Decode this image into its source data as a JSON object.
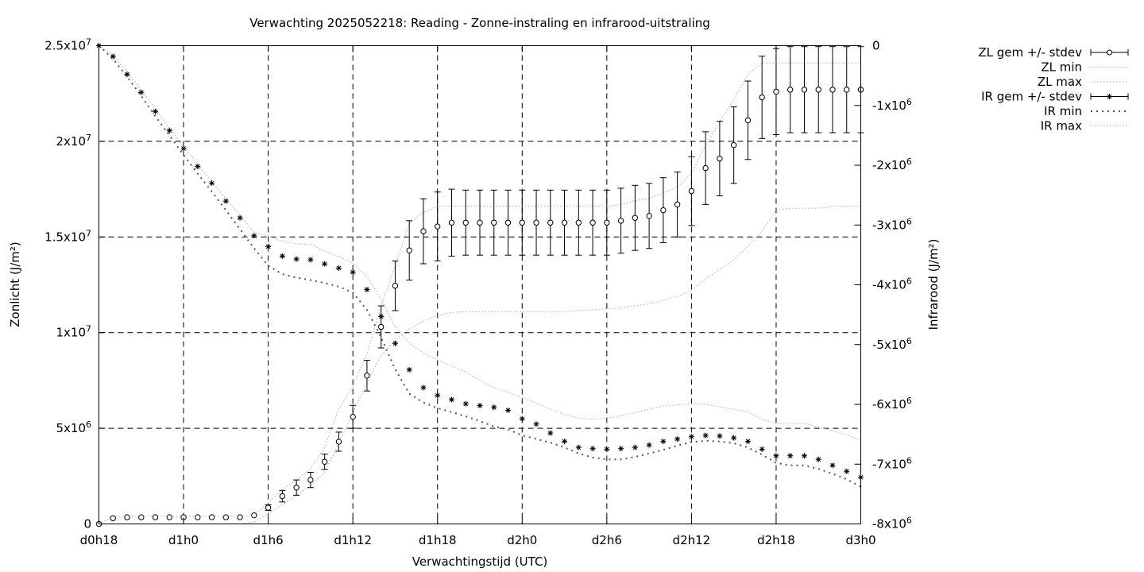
{
  "chart_data": {
    "type": "line",
    "title": "Verwachting 2025052218: Reading - Zonne-instraling en infrarood-uitstraling",
    "xlabel": "Verwachtingstijd (UTC)",
    "ylabel_left": "Zonlicht (J/m²)",
    "ylabel_right": "Infrarood (J/m²)",
    "grid": true,
    "legend_position": "top-right outside",
    "x_range_hours": [
      18,
      72
    ],
    "x_ticks": [
      {
        "h": 18,
        "label": "d0h18"
      },
      {
        "h": 24,
        "label": "d1h0"
      },
      {
        "h": 30,
        "label": "d1h6"
      },
      {
        "h": 36,
        "label": "d1h12"
      },
      {
        "h": 42,
        "label": "d1h18"
      },
      {
        "h": 48,
        "label": "d2h0"
      },
      {
        "h": 54,
        "label": "d2h6"
      },
      {
        "h": 60,
        "label": "d2h12"
      },
      {
        "h": 66,
        "label": "d2h18"
      },
      {
        "h": 72,
        "label": "d3h0"
      }
    ],
    "y_left_range": [
      0,
      25000000
    ],
    "y_left_ticks": [
      {
        "v": 0,
        "mant": "0",
        "exp": ""
      },
      {
        "v": 5000000,
        "mant": "5x10",
        "exp": "6"
      },
      {
        "v": 10000000,
        "mant": "1x10",
        "exp": "7"
      },
      {
        "v": 15000000,
        "mant": "1.5x10",
        "exp": "7"
      },
      {
        "v": 20000000,
        "mant": "2x10",
        "exp": "7"
      },
      {
        "v": 25000000,
        "mant": "2.5x10",
        "exp": "7"
      }
    ],
    "y_right_range": [
      -8000000,
      0
    ],
    "y_right_ticks": [
      {
        "v": 0,
        "mant": "0",
        "exp": ""
      },
      {
        "v": -1000000,
        "mant": "-1x10",
        "exp": "6"
      },
      {
        "v": -2000000,
        "mant": "-2x10",
        "exp": "6"
      },
      {
        "v": -3000000,
        "mant": "-3x10",
        "exp": "6"
      },
      {
        "v": -4000000,
        "mant": "-4x10",
        "exp": "6"
      },
      {
        "v": -5000000,
        "mant": "-5x10",
        "exp": "6"
      },
      {
        "v": -6000000,
        "mant": "-6x10",
        "exp": "6"
      },
      {
        "v": -7000000,
        "mant": "-7x10",
        "exp": "6"
      },
      {
        "v": -8000000,
        "mant": "-8x10",
        "exp": "6"
      }
    ],
    "zl_hours": [
      18,
      19,
      20,
      21,
      22,
      23,
      24,
      25,
      26,
      27,
      28,
      29,
      30,
      31,
      32,
      33,
      34,
      35,
      36,
      37,
      38,
      39,
      40,
      41,
      42,
      43,
      44,
      45,
      46,
      47,
      48,
      49,
      50,
      51,
      52,
      53,
      54,
      55,
      56,
      57,
      58,
      59,
      60,
      61,
      62,
      63,
      64,
      65,
      66,
      67,
      68,
      69,
      70,
      71,
      72
    ],
    "ir_hours": [
      18,
      19,
      20,
      21,
      22,
      23,
      24,
      25,
      26,
      27,
      28,
      29,
      30,
      31,
      32,
      33,
      34,
      35,
      36,
      37,
      38,
      39,
      40,
      41,
      42,
      43,
      44,
      45,
      46,
      47,
      48,
      49,
      50,
      51,
      52,
      53,
      54,
      55,
      56,
      57,
      58,
      59,
      60,
      61,
      62,
      63,
      64,
      65,
      66,
      67,
      68,
      69,
      70,
      71,
      72
    ],
    "series": [
      {
        "name": "ZL gem +/- stdev",
        "axis": "left",
        "marker": "circle",
        "with_error": true,
        "mean": [
          0,
          300000,
          350000,
          350000,
          350000,
          350000,
          350000,
          350000,
          350000,
          350000,
          350000,
          450000,
          850000,
          1450000,
          1900000,
          2300000,
          3250000,
          4300000,
          5600000,
          7750000,
          10300000,
          12450000,
          14300000,
          15300000,
          15550000,
          15750000,
          15750000,
          15750000,
          15750000,
          15750000,
          15750000,
          15750000,
          15750000,
          15750000,
          15750000,
          15750000,
          15750000,
          15850000,
          16000000,
          16100000,
          16400000,
          16700000,
          17400000,
          18600000,
          19100000,
          19800000,
          21100000,
          22300000,
          22600000,
          22700000,
          22700000,
          22700000,
          22700000,
          22700000,
          22700000
        ],
        "stdev": [
          0,
          0,
          0,
          0,
          0,
          0,
          0,
          0,
          0,
          0,
          0,
          0,
          150000,
          300000,
          400000,
          400000,
          400000,
          500000,
          600000,
          800000,
          1100000,
          1300000,
          1550000,
          1700000,
          1800000,
          1750000,
          1700000,
          1700000,
          1700000,
          1700000,
          1700000,
          1700000,
          1700000,
          1700000,
          1700000,
          1700000,
          1700000,
          1700000,
          1700000,
          1700000,
          1700000,
          1700000,
          1800000,
          1900000,
          1950000,
          2000000,
          2050000,
          2150000,
          2250000,
          2250000,
          2250000,
          2250000,
          2250000,
          2250000,
          2250000
        ]
      },
      {
        "name": "ZL min",
        "axis": "left",
        "style": "dotted",
        "values": [
          0,
          0,
          0,
          0,
          0,
          0,
          0,
          0,
          0,
          0,
          0,
          100000,
          550000,
          1000000,
          1500000,
          2000000,
          2700000,
          4200000,
          5800000,
          7400000,
          8800000,
          9600000,
          10200000,
          10600000,
          10900000,
          11050000,
          11100000,
          11100000,
          11100000,
          11100000,
          11100000,
          11100000,
          11100000,
          11100000,
          11150000,
          11200000,
          11250000,
          11300000,
          11400000,
          11500000,
          11700000,
          11900000,
          12200000,
          12800000,
          13300000,
          13800000,
          14500000,
          15300000,
          16400000,
          16500000,
          16500000,
          16500000,
          16600000,
          16600000,
          16600000
        ]
      },
      {
        "name": "ZL max",
        "axis": "left",
        "style": "dotted",
        "values": [
          0,
          400000,
          400000,
          400000,
          400000,
          400000,
          400000,
          400000,
          400000,
          400000,
          400000,
          500000,
          1100000,
          1800000,
          2300000,
          2900000,
          4000000,
          6000000,
          7200000,
          8900000,
          11400000,
          13500000,
          15700000,
          16300000,
          16600000,
          16600000,
          16600000,
          16600000,
          16600000,
          16600000,
          16600000,
          16600000,
          16600000,
          16600000,
          16600000,
          16600000,
          16600000,
          16700000,
          16900000,
          17000000,
          17300000,
          17600000,
          18300000,
          19800000,
          21000000,
          22200000,
          23500000,
          24100000,
          24100000,
          24100000,
          24100000,
          24100000,
          24100000,
          24100000,
          24100000
        ]
      },
      {
        "name": "IR gem +/- stdev",
        "axis": "right",
        "marker": "star",
        "with_error": true,
        "mean": [
          0,
          -180000,
          -480000,
          -780000,
          -1100000,
          -1420000,
          -1720000,
          -2020000,
          -2300000,
          -2600000,
          -2880000,
          -3180000,
          -3360000,
          -3520000,
          -3570000,
          -3580000,
          -3650000,
          -3720000,
          -3790000,
          -4080000,
          -4530000,
          -4980000,
          -5420000,
          -5720000,
          -5850000,
          -5920000,
          -5990000,
          -6020000,
          -6050000,
          -6100000,
          -6240000,
          -6330000,
          -6480000,
          -6620000,
          -6720000,
          -6740000,
          -6750000,
          -6740000,
          -6720000,
          -6680000,
          -6620000,
          -6580000,
          -6540000,
          -6520000,
          -6530000,
          -6560000,
          -6620000,
          -6750000,
          -6860000,
          -6860000,
          -6860000,
          -6920000,
          -7020000,
          -7120000,
          -7220000
        ]
      },
      {
        "name": "IR min",
        "axis": "right",
        "style": "dotted",
        "values": [
          0,
          -220000,
          -520000,
          -840000,
          -1180000,
          -1500000,
          -1830000,
          -2140000,
          -2440000,
          -2750000,
          -3070000,
          -3390000,
          -3680000,
          -3820000,
          -3880000,
          -3920000,
          -3970000,
          -4030000,
          -4130000,
          -4420000,
          -4880000,
          -5410000,
          -5820000,
          -5970000,
          -6060000,
          -6130000,
          -6200000,
          -6280000,
          -6370000,
          -6420000,
          -6520000,
          -6580000,
          -6640000,
          -6720000,
          -6820000,
          -6890000,
          -6920000,
          -6920000,
          -6880000,
          -6820000,
          -6760000,
          -6690000,
          -6630000,
          -6610000,
          -6620000,
          -6650000,
          -6720000,
          -6840000,
          -6980000,
          -7020000,
          -7020000,
          -7080000,
          -7160000,
          -7250000,
          -7380000
        ]
      },
      {
        "name": "IR max",
        "axis": "right",
        "style": "dotted",
        "values": [
          0,
          -160000,
          -440000,
          -740000,
          -1060000,
          -1380000,
          -1680000,
          -1980000,
          -2280000,
          -2560000,
          -2830000,
          -3120000,
          -3180000,
          -3270000,
          -3310000,
          -3320000,
          -3440000,
          -3530000,
          -3640000,
          -3860000,
          -4240000,
          -4700000,
          -4980000,
          -5140000,
          -5260000,
          -5360000,
          -5460000,
          -5600000,
          -5720000,
          -5800000,
          -5880000,
          -5980000,
          -6080000,
          -6170000,
          -6230000,
          -6250000,
          -6230000,
          -6190000,
          -6140000,
          -6080000,
          -6030000,
          -6010000,
          -5990000,
          -6000000,
          -6040000,
          -6080000,
          -6120000,
          -6250000,
          -6320000,
          -6320000,
          -6320000,
          -6380000,
          -6440000,
          -6510000,
          -6600000
        ]
      }
    ]
  }
}
